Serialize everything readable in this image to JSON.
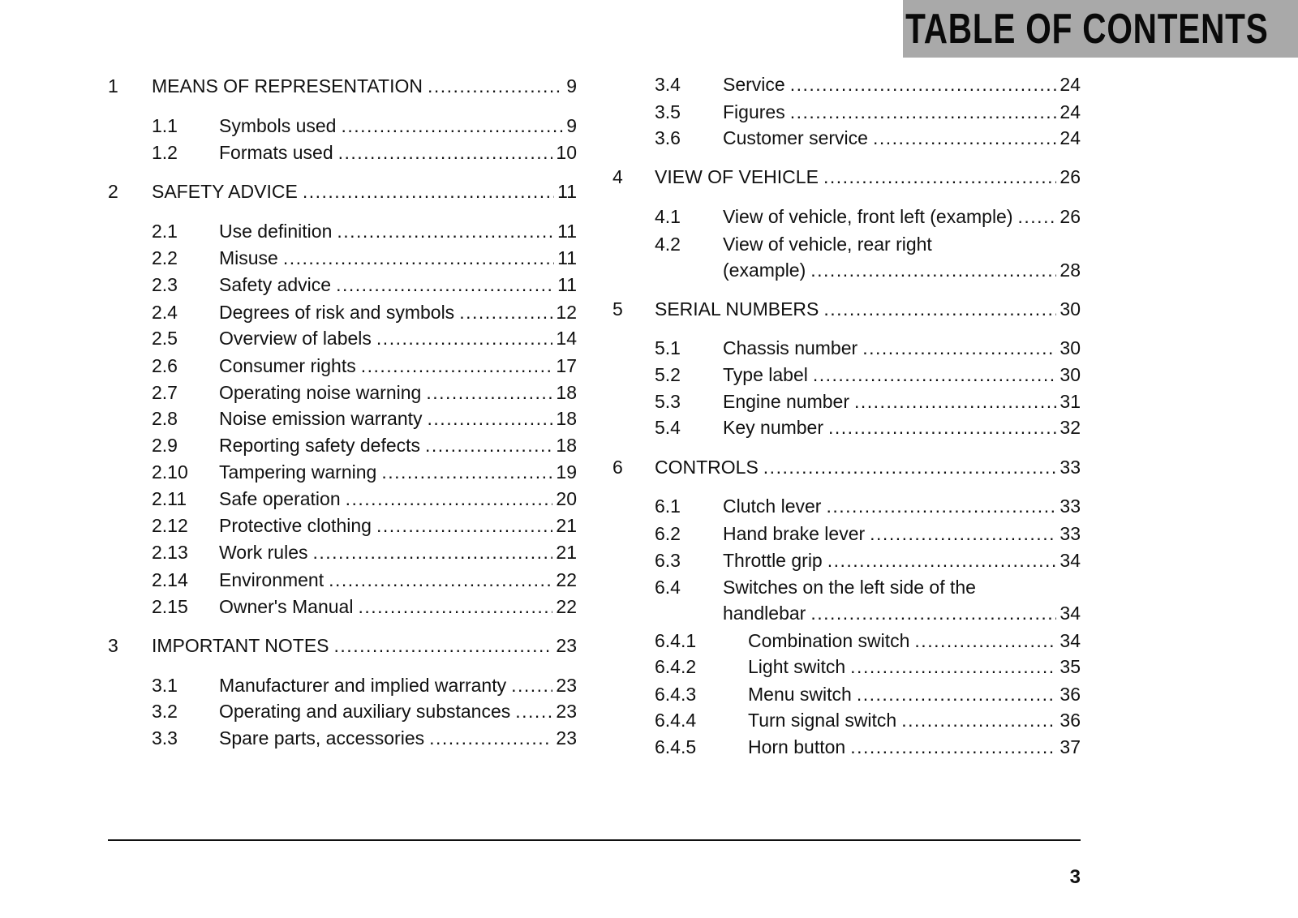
{
  "header": {
    "title": "TABLE OF CONTENTS",
    "bar_color": "#a9a9a9"
  },
  "left_column": [
    {
      "num": "1",
      "title": "MEANS OF REPRESENTATION",
      "page": "9",
      "level": 1
    },
    {
      "num": "1.1",
      "title": "Symbols used",
      "page": "9",
      "level": 2
    },
    {
      "num": "1.2",
      "title": "Formats used",
      "page": "10",
      "level": 2
    },
    {
      "num": "2",
      "title": "SAFETY ADVICE",
      "page": "11",
      "level": 1
    },
    {
      "num": "2.1",
      "title": "Use definition",
      "page": "11",
      "level": 2
    },
    {
      "num": "2.2",
      "title": "Misuse",
      "page": "11",
      "level": 2
    },
    {
      "num": "2.3",
      "title": "Safety advice",
      "page": "11",
      "level": 2
    },
    {
      "num": "2.4",
      "title": "Degrees of risk and symbols",
      "page": "12",
      "level": 2
    },
    {
      "num": "2.5",
      "title": "Overview of labels",
      "page": "14",
      "level": 2
    },
    {
      "num": "2.6",
      "title": "Consumer rights",
      "page": "17",
      "level": 2
    },
    {
      "num": "2.7",
      "title": "Operating noise warning",
      "page": "18",
      "level": 2
    },
    {
      "num": "2.8",
      "title": "Noise emission warranty",
      "page": "18",
      "level": 2
    },
    {
      "num": "2.9",
      "title": "Reporting safety defects",
      "page": "18",
      "level": 2
    },
    {
      "num": "2.10",
      "title": "Tampering warning",
      "page": "19",
      "level": 2
    },
    {
      "num": "2.11",
      "title": "Safe operation",
      "page": "20",
      "level": 2
    },
    {
      "num": "2.12",
      "title": "Protective clothing",
      "page": "21",
      "level": 2
    },
    {
      "num": "2.13",
      "title": "Work rules",
      "page": "21",
      "level": 2
    },
    {
      "num": "2.14",
      "title": "Environment",
      "page": "22",
      "level": 2
    },
    {
      "num": "2.15",
      "title": "Owner's Manual",
      "page": "22",
      "level": 2
    },
    {
      "num": "3",
      "title": "IMPORTANT NOTES",
      "page": "23",
      "level": 1
    },
    {
      "num": "3.1",
      "title": "Manufacturer and implied warranty",
      "page": "23",
      "level": 2
    },
    {
      "num": "3.2",
      "title": "Operating and auxiliary substances",
      "page": "23",
      "level": 2
    },
    {
      "num": "3.3",
      "title": "Spare parts, accessories",
      "page": "23",
      "level": 2
    }
  ],
  "right_column": [
    {
      "num": "3.4",
      "title": "Service",
      "page": "24",
      "level": 2
    },
    {
      "num": "3.5",
      "title": "Figures",
      "page": "24",
      "level": 2
    },
    {
      "num": "3.6",
      "title": "Customer service",
      "page": "24",
      "level": 2
    },
    {
      "num": "4",
      "title": "VIEW OF VEHICLE",
      "page": "26",
      "level": 1
    },
    {
      "num": "4.1",
      "title": "View of vehicle, front left (example)",
      "page": "26",
      "level": 2
    },
    {
      "num": "4.2",
      "title": "View of vehicle, rear right",
      "title_cont": "(example)",
      "page": "28",
      "level": 2
    },
    {
      "num": "5",
      "title": "SERIAL NUMBERS",
      "page": "30",
      "level": 1
    },
    {
      "num": "5.1",
      "title": "Chassis number",
      "page": "30",
      "level": 2
    },
    {
      "num": "5.2",
      "title": "Type label",
      "page": "30",
      "level": 2
    },
    {
      "num": "5.3",
      "title": "Engine number",
      "page": "31",
      "level": 2
    },
    {
      "num": "5.4",
      "title": "Key number",
      "page": "32",
      "level": 2
    },
    {
      "num": "6",
      "title": "CONTROLS",
      "page": "33",
      "level": 1
    },
    {
      "num": "6.1",
      "title": "Clutch lever",
      "page": "33",
      "level": 2
    },
    {
      "num": "6.2",
      "title": "Hand brake lever",
      "page": "33",
      "level": 2
    },
    {
      "num": "6.3",
      "title": "Throttle grip",
      "page": "34",
      "level": 2
    },
    {
      "num": "6.4",
      "title": "Switches on the left side of the",
      "title_cont": "handlebar",
      "page": "34",
      "level": 2
    },
    {
      "num": "6.4.1",
      "title": "Combination switch",
      "page": "34",
      "level": 3
    },
    {
      "num": "6.4.2",
      "title": "Light switch",
      "page": "35",
      "level": 3
    },
    {
      "num": "6.4.3",
      "title": "Menu switch",
      "page": "36",
      "level": 3
    },
    {
      "num": "6.4.4",
      "title": "Turn signal switch",
      "page": "36",
      "level": 3
    },
    {
      "num": "6.4.5",
      "title": "Horn button",
      "page": "37",
      "level": 3
    }
  ],
  "footer": {
    "page_number": "3"
  }
}
